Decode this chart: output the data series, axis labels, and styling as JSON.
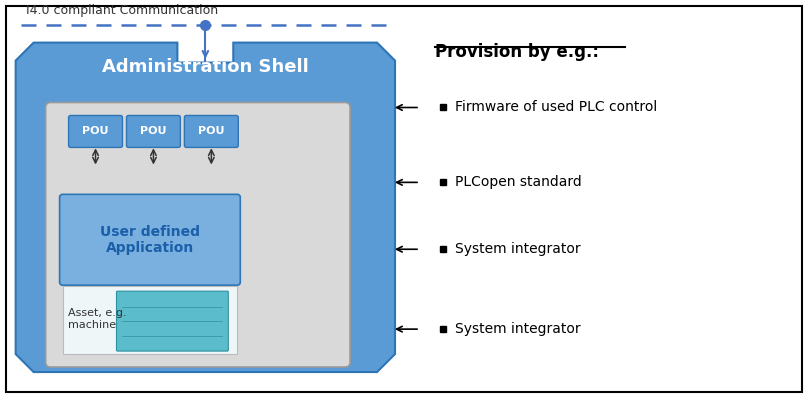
{
  "bg_color": "#ffffff",
  "border_color": "#000000",
  "admin_shell_color": "#5b9bd5",
  "inner_box_color": "#d9d9d9",
  "pou_color": "#5b9bd5",
  "user_app_color": "#7ab0e0",
  "dashed_line_color": "#4472c4",
  "connector_color": "#4472c4",
  "title": "I4.0 compliant Communication",
  "provision_title": "Provision by e.g.:",
  "provision_items": [
    "Firmware of used PLC control",
    "PLCopen standard",
    "System integrator",
    "System integrator"
  ],
  "admin_shell_label": "Administration Shell",
  "pou_labels": [
    "POU",
    "POU",
    "POU"
  ],
  "user_app_label": "User defined\nApplication",
  "asset_label": "Asset, e.g.\nmachine"
}
